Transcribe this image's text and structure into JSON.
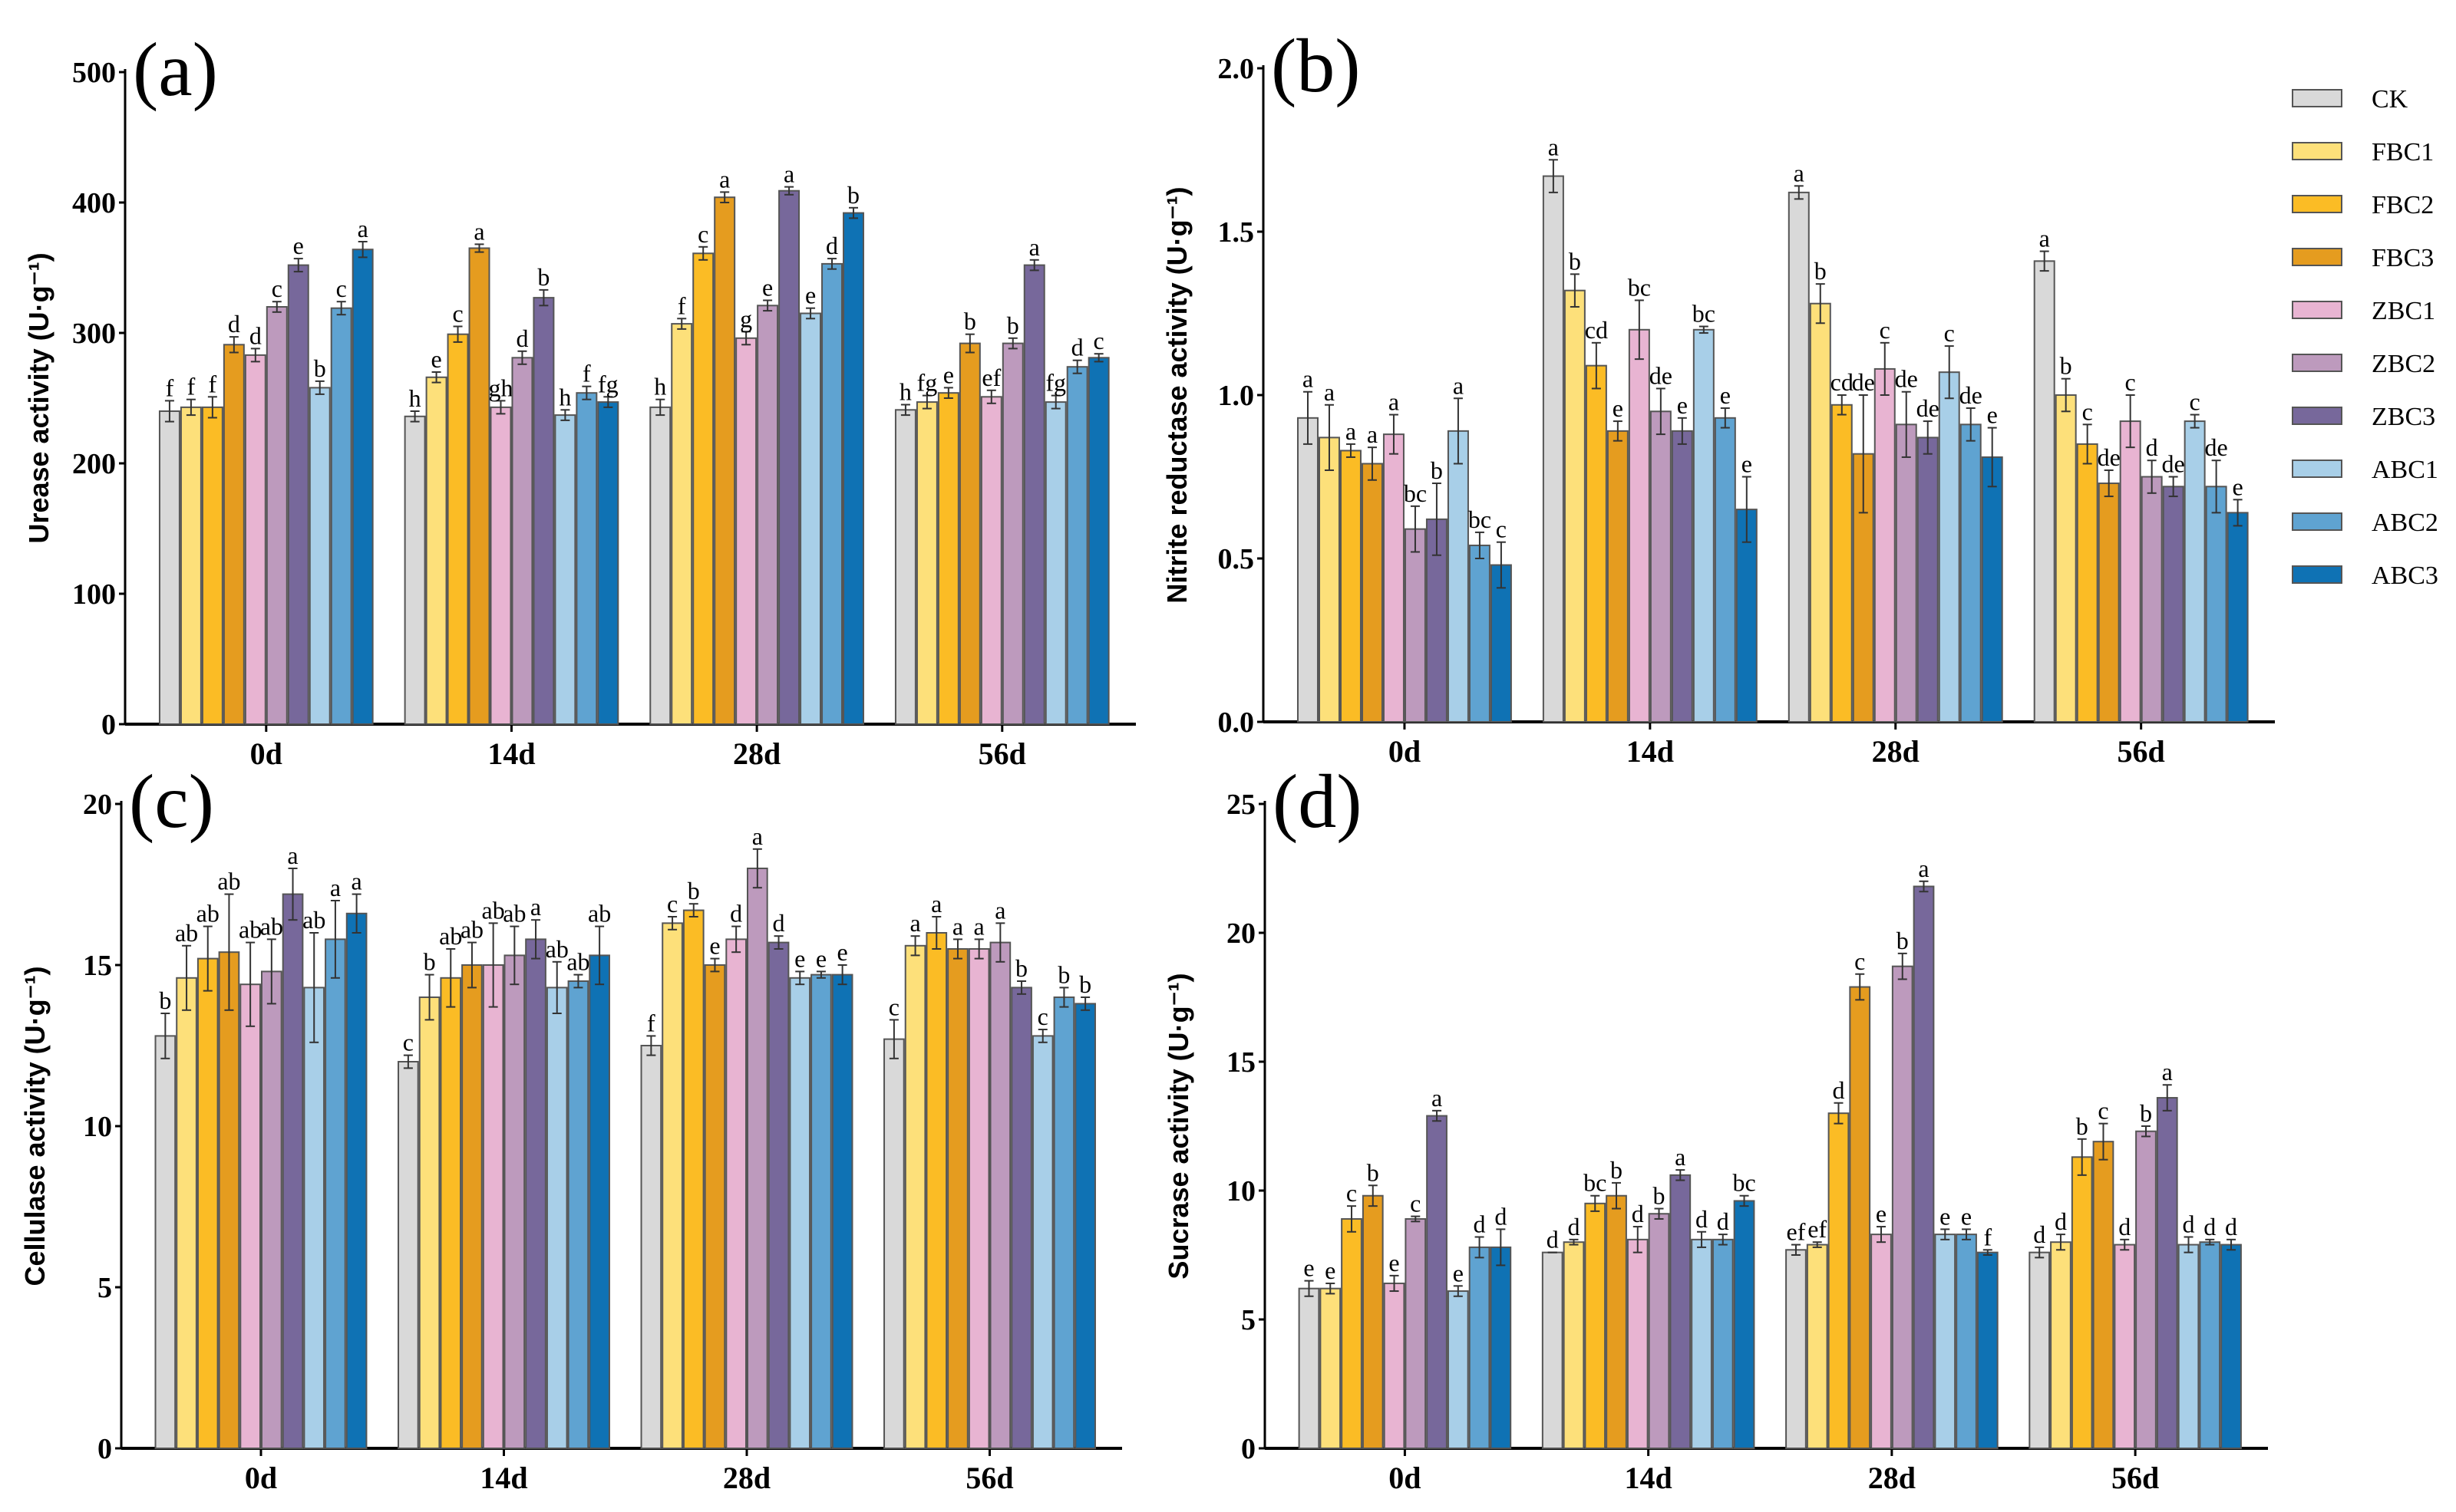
{
  "groups": [
    "CK",
    "FBC1",
    "FBC2",
    "FBC3",
    "ZBC1",
    "ZBC2",
    "ZBC3",
    "ABC1",
    "ABC2",
    "ABC3"
  ],
  "colors": [
    "#d9d9d9",
    "#fde07a",
    "#fbbc25",
    "#e59c1f",
    "#e8b4d2",
    "#bd9abd",
    "#77689b",
    "#a8cfe8",
    "#5fa3d1",
    "#0f72b4"
  ],
  "chart_data": [
    {
      "type": "bar",
      "tag": "(a)",
      "ylabel": "Urease activity (U·g⁻¹)",
      "categories": [
        "0d",
        "14d",
        "28d",
        "56d"
      ],
      "ylim": [
        0,
        500
      ],
      "yticks": [
        "0",
        "100",
        "200",
        "300",
        "400",
        "500"
      ],
      "series_values": [
        [
          240,
          243,
          243,
          291,
          283,
          320,
          352,
          258,
          319,
          364
        ],
        [
          236,
          266,
          299,
          365,
          243,
          281,
          327,
          237,
          254,
          247
        ],
        [
          243,
          307,
          361,
          404,
          296,
          321,
          409,
          315,
          353,
          392
        ],
        [
          241,
          247,
          254,
          292,
          251,
          292,
          352,
          247,
          274,
          281
        ]
      ],
      "errors": [
        [
          8,
          6,
          8,
          6,
          5,
          4,
          5,
          5,
          5,
          6
        ],
        [
          4,
          4,
          6,
          3,
          5,
          5,
          6,
          4,
          5,
          4
        ],
        [
          6,
          4,
          5,
          4,
          5,
          4,
          3,
          4,
          4,
          4
        ],
        [
          4,
          5,
          4,
          7,
          5,
          4,
          4,
          5,
          5,
          3
        ]
      ],
      "letters": [
        [
          "f",
          "f",
          "f",
          "d",
          "d",
          "c",
          "e",
          "b",
          "c",
          "a"
        ],
        [
          "h",
          "e",
          "c",
          "a",
          "gh",
          "d",
          "b",
          "h",
          "f",
          "fg"
        ],
        [
          "h",
          "f",
          "c",
          "a",
          "g",
          "e",
          "a",
          "e",
          "d",
          "b"
        ],
        [
          "h",
          "fg",
          "e",
          "b",
          "ef",
          "b",
          "a",
          "fg",
          "d",
          "c"
        ]
      ]
    },
    {
      "type": "bar",
      "tag": "(b)",
      "ylabel": "Nitrite reductase activity (U·g⁻¹)",
      "categories": [
        "0d",
        "14d",
        "28d",
        "56d"
      ],
      "ylim": [
        0,
        2.0
      ],
      "yticks": [
        "0.0",
        "0.5",
        "1.0",
        "1.5",
        "2.0"
      ],
      "series_values": [
        [
          0.93,
          0.87,
          0.83,
          0.79,
          0.88,
          0.59,
          0.62,
          0.89,
          0.54,
          0.48
        ],
        [
          1.67,
          1.32,
          1.09,
          0.89,
          1.2,
          0.95,
          0.89,
          1.2,
          0.93,
          0.65
        ],
        [
          1.62,
          1.28,
          0.97,
          0.82,
          1.08,
          0.91,
          0.87,
          1.07,
          0.91,
          0.81
        ],
        [
          1.41,
          1.0,
          0.85,
          0.73,
          0.92,
          0.75,
          0.72,
          0.92,
          0.72,
          0.64
        ]
      ],
      "errors": [
        [
          0.08,
          0.1,
          0.02,
          0.05,
          0.06,
          0.07,
          0.11,
          0.1,
          0.04,
          0.07
        ],
        [
          0.05,
          0.05,
          0.07,
          0.03,
          0.09,
          0.07,
          0.04,
          0.01,
          0.03,
          0.1
        ],
        [
          0.02,
          0.06,
          0.03,
          0.18,
          0.08,
          0.1,
          0.05,
          0.08,
          0.05,
          0.09
        ],
        [
          0.03,
          0.05,
          0.06,
          0.04,
          0.08,
          0.05,
          0.03,
          0.02,
          0.08,
          0.04
        ]
      ],
      "letters": [
        [
          "a",
          "a",
          "a",
          "a",
          "a",
          "bc",
          "b",
          "a",
          "bc",
          "c"
        ],
        [
          "a",
          "b",
          "cd",
          "e",
          "bc",
          "de",
          "e",
          "bc",
          "e",
          "e"
        ],
        [
          "a",
          "b",
          "cd",
          "de",
          "c",
          "de",
          "de",
          "c",
          "de",
          "e"
        ],
        [
          "a",
          "b",
          "c",
          "de",
          "c",
          "d",
          "de",
          "c",
          "de",
          "e"
        ]
      ]
    },
    {
      "type": "bar",
      "tag": "(c)",
      "ylabel": "Cellulase activity (U·g⁻¹)",
      "categories": [
        "0d",
        "14d",
        "28d",
        "56d"
      ],
      "ylim": [
        0,
        20
      ],
      "yticks": [
        "0",
        "5",
        "10",
        "15",
        "20"
      ],
      "series_values": [
        [
          12.8,
          14.6,
          15.2,
          15.4,
          14.4,
          14.8,
          17.2,
          14.3,
          15.8,
          16.6
        ],
        [
          12.0,
          14.0,
          14.6,
          15.0,
          15.0,
          15.3,
          15.8,
          14.3,
          14.5,
          15.3
        ],
        [
          12.5,
          16.3,
          16.7,
          15.0,
          15.8,
          18.0,
          15.7,
          14.6,
          14.7,
          14.7
        ],
        [
          12.7,
          15.6,
          16.0,
          15.5,
          15.5,
          15.7,
          14.3,
          12.8,
          14.0,
          13.8
        ]
      ],
      "errors": [
        [
          0.7,
          1.0,
          1.0,
          1.8,
          1.3,
          1.0,
          0.8,
          1.7,
          1.2,
          0.6
        ],
        [
          0.2,
          0.7,
          0.9,
          0.7,
          1.3,
          0.9,
          0.6,
          0.8,
          0.2,
          0.9
        ],
        [
          0.3,
          0.2,
          0.2,
          0.2,
          0.4,
          0.6,
          0.2,
          0.2,
          0.1,
          0.3
        ],
        [
          0.6,
          0.3,
          0.5,
          0.3,
          0.3,
          0.6,
          0.2,
          0.2,
          0.3,
          0.2
        ]
      ],
      "letters": [
        [
          "b",
          "ab",
          "ab",
          "ab",
          "ab",
          "ab",
          "a",
          "ab",
          "a",
          "a"
        ],
        [
          "c",
          "b",
          "ab",
          "ab",
          "ab",
          "ab",
          "a",
          "ab",
          "ab",
          "ab"
        ],
        [
          "f",
          "c",
          "b",
          "e",
          "d",
          "a",
          "d",
          "e",
          "e",
          "e"
        ],
        [
          "c",
          "a",
          "a",
          "a",
          "a",
          "a",
          "b",
          "c",
          "b",
          "b"
        ]
      ]
    },
    {
      "type": "bar",
      "tag": "(d)",
      "ylabel": "Sucrase activity (U·g⁻¹)",
      "categories": [
        "0d",
        "14d",
        "28d",
        "56d"
      ],
      "ylim": [
        0,
        25
      ],
      "yticks": [
        "0",
        "5",
        "10",
        "15",
        "20",
        "25"
      ],
      "series_values": [
        [
          6.2,
          6.2,
          8.9,
          9.8,
          6.4,
          8.9,
          12.9,
          6.1,
          7.8,
          7.8
        ],
        [
          7.6,
          8.0,
          9.5,
          9.8,
          8.1,
          9.1,
          10.6,
          8.1,
          8.1,
          9.6
        ],
        [
          7.7,
          7.9,
          13.0,
          17.9,
          8.3,
          18.7,
          21.8,
          8.3,
          8.3,
          7.6
        ],
        [
          7.6,
          8.0,
          11.3,
          11.9,
          7.9,
          12.3,
          13.6,
          7.9,
          8.0,
          7.9
        ]
      ],
      "errors": [
        [
          0.3,
          0.2,
          0.5,
          0.4,
          0.3,
          0.1,
          0.2,
          0.2,
          0.4,
          0.7
        ],
        [
          0.0,
          0.1,
          0.3,
          0.5,
          0.5,
          0.2,
          0.2,
          0.3,
          0.2,
          0.2
        ],
        [
          0.2,
          0.1,
          0.4,
          0.5,
          0.3,
          0.5,
          0.2,
          0.2,
          0.2,
          0.1
        ],
        [
          0.2,
          0.3,
          0.7,
          0.7,
          0.2,
          0.2,
          0.5,
          0.3,
          0.1,
          0.2
        ]
      ],
      "letters": [
        [
          "e",
          "e",
          "c",
          "b",
          "e",
          "c",
          "a",
          "e",
          "d",
          "d"
        ],
        [
          "d",
          "d",
          "bc",
          "b",
          "d",
          "b",
          "a",
          "d",
          "d",
          "bc"
        ],
        [
          "ef",
          "ef",
          "d",
          "c",
          "e",
          "b",
          "a",
          "e",
          "e",
          "f"
        ],
        [
          "d",
          "d",
          "b",
          "c",
          "d",
          "b",
          "a",
          "d",
          "d",
          "d"
        ]
      ]
    }
  ],
  "legend": {
    "placement": "right of panel (b)"
  }
}
